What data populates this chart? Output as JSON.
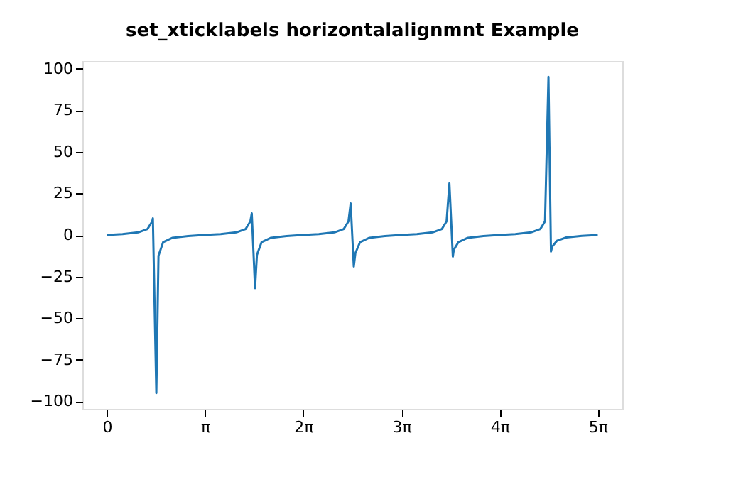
{
  "chart_data": {
    "type": "line",
    "title": "set_xticklabels horizontalalignmnt Example",
    "x": [
      0,
      0.5,
      1.0,
      1.3,
      1.45,
      1.47,
      1.581,
      1.65,
      1.8,
      2.1,
      2.6,
      3.1,
      3.64,
      4.14,
      4.44,
      4.59,
      4.635,
      4.74,
      4.8,
      4.95,
      5.25,
      5.75,
      6.25,
      6.78,
      7.28,
      7.58,
      7.73,
      7.8,
      7.9,
      7.95,
      8.1,
      8.4,
      8.9,
      9.4,
      9.92,
      10.42,
      10.72,
      10.87,
      10.96,
      11.07,
      11.1,
      11.25,
      11.55,
      12.05,
      12.55,
      13.07,
      13.57,
      13.87,
      14.02,
      14.13,
      14.21,
      14.25,
      14.4,
      14.7,
      15.2,
      15.708
    ],
    "series": [
      {
        "color": "#1f77b4",
        "values": [
          0,
          0.55,
          1.56,
          3.6,
          8.2,
          10,
          -95,
          -12.5,
          -4.3,
          -1.7,
          -0.6,
          -0.04,
          0.55,
          1.56,
          3.6,
          8.2,
          13,
          -32,
          -12,
          -4.3,
          -1.7,
          -0.6,
          -0.03,
          0.55,
          1.56,
          3.6,
          8.2,
          19,
          -19,
          -11,
          -4.3,
          -1.7,
          -0.6,
          -0.03,
          0.55,
          1.56,
          3.6,
          8.2,
          31,
          -13,
          -9,
          -4.3,
          -1.7,
          -0.6,
          -0.03,
          0.55,
          1.56,
          3.6,
          8.2,
          95,
          -10,
          -7,
          -3.5,
          -1.5,
          -0.5,
          0
        ]
      }
    ],
    "xlim": [
      -0.785,
      16.493
    ],
    "xticks": [
      0,
      {
        "value": 3.1416,
        "label": "π"
      },
      {
        "value": 6.2832,
        "label": "2π"
      },
      {
        "value": 9.4248,
        "label": "3π"
      },
      {
        "value": 12.5664,
        "label": "4π"
      },
      {
        "value": 15.708,
        "label": "5π"
      }
    ],
    "ylim": [
      -104.5,
      104.5
    ],
    "yticks": [
      -100,
      -75,
      -50,
      -25,
      0,
      25,
      50,
      75,
      100
    ],
    "grid": false,
    "legend": false
  }
}
